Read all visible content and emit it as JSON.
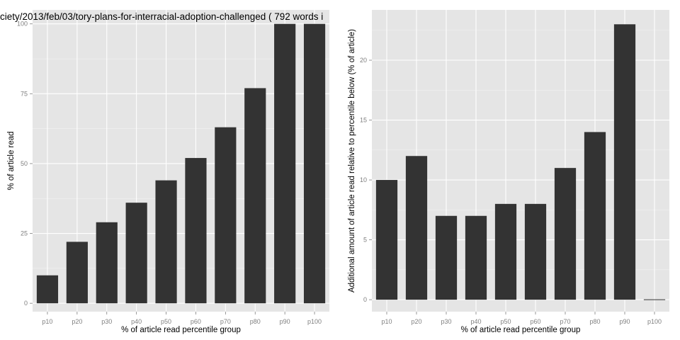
{
  "chart_data": [
    {
      "type": "bar",
      "title": "ciety/2013/feb/03/tory-plans-for-interracial-adoption-challenged ( 792 words i",
      "xlabel": "% of article read percentile group",
      "ylabel": "% of article read",
      "categories": [
        "p10",
        "p20",
        "p30",
        "p40",
        "p50",
        "p60",
        "p70",
        "p80",
        "p90",
        "p100"
      ],
      "values": [
        10,
        22,
        29,
        36,
        44,
        52,
        63,
        77,
        100,
        100
      ],
      "ylim": [
        -3,
        105
      ],
      "yticks": [
        0,
        25,
        50,
        75,
        100
      ],
      "yticks_minor": [
        12.5,
        37.5,
        62.5,
        87.5
      ],
      "grid": true,
      "bar_color": "#333333",
      "panel_color": "#e5e5e5"
    },
    {
      "type": "bar",
      "title": "",
      "xlabel": "% of article read percentile group",
      "ylabel": "Additional amount of article read relative to percentile below (% of article)",
      "categories": [
        "p10",
        "p20",
        "p30",
        "p40",
        "p50",
        "p60",
        "p70",
        "p80",
        "p90",
        "p100"
      ],
      "values": [
        10,
        12,
        7,
        7,
        8,
        8,
        11,
        14,
        23,
        0
      ],
      "ylim": [
        -1,
        24.2
      ],
      "yticks": [
        0,
        5,
        10,
        15,
        20
      ],
      "yticks_minor": [
        2.5,
        7.5,
        12.5,
        17.5,
        22.5
      ],
      "grid": true,
      "bar_color": "#333333",
      "panel_color": "#e5e5e5"
    }
  ]
}
